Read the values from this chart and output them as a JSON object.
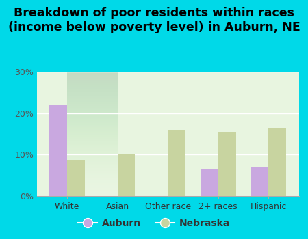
{
  "title": "Breakdown of poor residents within races\n(income below poverty level) in Auburn, NE",
  "categories": [
    "White",
    "Asian",
    "Other race",
    "2+ races",
    "Hispanic"
  ],
  "auburn_values": [
    22,
    0,
    0,
    6.5,
    7
  ],
  "nebraska_values": [
    8.5,
    10,
    16,
    15.5,
    16.5
  ],
  "auburn_color": "#c9a8e0",
  "nebraska_color": "#c8d4a0",
  "bg_outer": "#00d9e8",
  "bg_chart_top": "#e8f5e0",
  "bg_chart_bottom": "#f8fef4",
  "ylim": [
    0,
    30
  ],
  "yticks": [
    0,
    10,
    20,
    30
  ],
  "ytick_labels": [
    "0%",
    "10%",
    "20%",
    "30%"
  ],
  "bar_width": 0.35,
  "legend_labels": [
    "Auburn",
    "Nebraska"
  ],
  "title_fontsize": 12.5,
  "axis_fontsize": 9,
  "legend_fontsize": 10
}
